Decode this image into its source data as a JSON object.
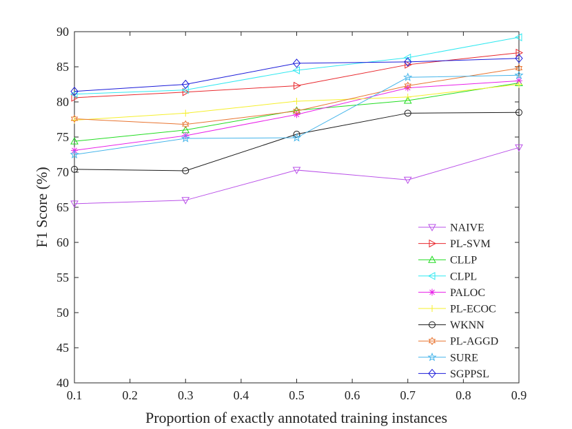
{
  "chart_data": {
    "type": "line",
    "title": "",
    "xlabel": "Proportion of exactly annotated training instances",
    "ylabel": "F1 Score (%)",
    "xlim": [
      0.1,
      0.9
    ],
    "ylim": [
      40,
      90
    ],
    "xticks": [
      "0.1",
      "0.2",
      "0.3",
      "0.4",
      "0.5",
      "0.6",
      "0.7",
      "0.8",
      "0.9"
    ],
    "yticks": [
      "40",
      "45",
      "50",
      "55",
      "60",
      "65",
      "70",
      "75",
      "80",
      "85",
      "90"
    ],
    "legend_position": "bottom-right",
    "grid": false,
    "x": [
      0.1,
      0.3,
      0.5,
      0.7,
      0.9
    ],
    "series": [
      {
        "name": "NAIVE",
        "color": "#b94fe8",
        "marker": "triangle-down",
        "values": [
          65.5,
          66.0,
          70.3,
          68.9,
          73.5
        ]
      },
      {
        "name": "PL-SVM",
        "color": "#e8262b",
        "marker": "triangle-right",
        "values": [
          80.6,
          81.4,
          82.3,
          85.3,
          87.0
        ]
      },
      {
        "name": "CLLP",
        "color": "#1fdc1f",
        "marker": "triangle-up",
        "values": [
          74.4,
          76.0,
          78.8,
          80.2,
          82.7
        ]
      },
      {
        "name": "CLPL",
        "color": "#2ee8f0",
        "marker": "triangle-left",
        "values": [
          81.1,
          81.7,
          84.5,
          86.3,
          89.2
        ]
      },
      {
        "name": "PALOC",
        "color": "#e81ee8",
        "marker": "asterisk",
        "values": [
          73.1,
          75.2,
          78.2,
          82.0,
          83.0
        ]
      },
      {
        "name": "PL-ECOC",
        "color": "#f5ef2a",
        "marker": "plus",
        "values": [
          77.4,
          78.4,
          80.1,
          80.7,
          82.5
        ]
      },
      {
        "name": "WKNN",
        "color": "#1a1a1a",
        "marker": "circle",
        "values": [
          70.4,
          70.2,
          75.4,
          78.4,
          78.5
        ]
      },
      {
        "name": "PL-AGGD",
        "color": "#e8732e",
        "marker": "hexagram",
        "values": [
          77.6,
          76.8,
          78.7,
          82.3,
          84.8
        ]
      },
      {
        "name": "SURE",
        "color": "#43b4ea",
        "marker": "pentagram",
        "values": [
          72.5,
          74.8,
          74.9,
          83.5,
          83.8
        ]
      },
      {
        "name": "SGPPSL",
        "color": "#1919d9",
        "marker": "diamond",
        "values": [
          81.5,
          82.5,
          85.5,
          85.7,
          86.2
        ]
      }
    ]
  }
}
